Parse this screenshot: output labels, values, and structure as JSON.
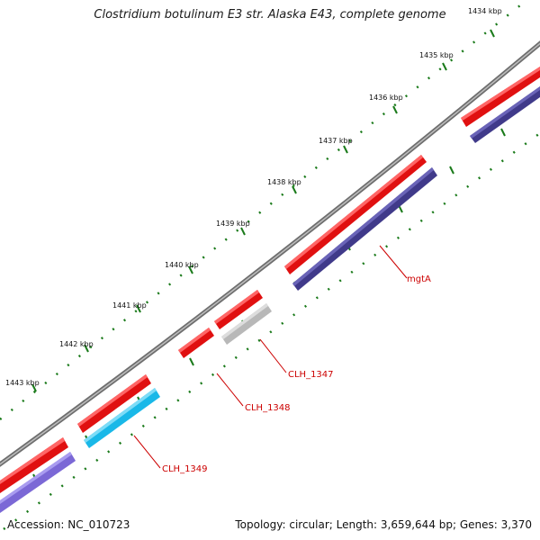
{
  "title": "Clostridium botulinum E3 str. Alaska E43, complete genome",
  "accession": "Accession: NC_010723",
  "summary": "Topology: circular; Length: 3,659,644 bp; Genes: 3,370",
  "scale_labels": [
    "1434 kbp",
    "1435 kbp",
    "1436 kbp",
    "1437 kbp",
    "1438 kbp",
    "1439 kbp",
    "1440 kbp",
    "1441 kbp",
    "1442 kbp",
    "1443 kbp"
  ],
  "gene_labels": [
    "mgtA",
    "CLH_1347",
    "CLH_1348",
    "CLH_1349"
  ],
  "colors": {
    "backbone": "#7f7f7f",
    "forward_feature": "#e01010",
    "reverse_feature": "#403a8a",
    "reverse_feature_light": "#7b68d6",
    "pseudo_feature": "#b8b8b8",
    "cyan_feature": "#19b8e8",
    "ticks": "#1a7a1a",
    "label_red": "#cc0000"
  }
}
